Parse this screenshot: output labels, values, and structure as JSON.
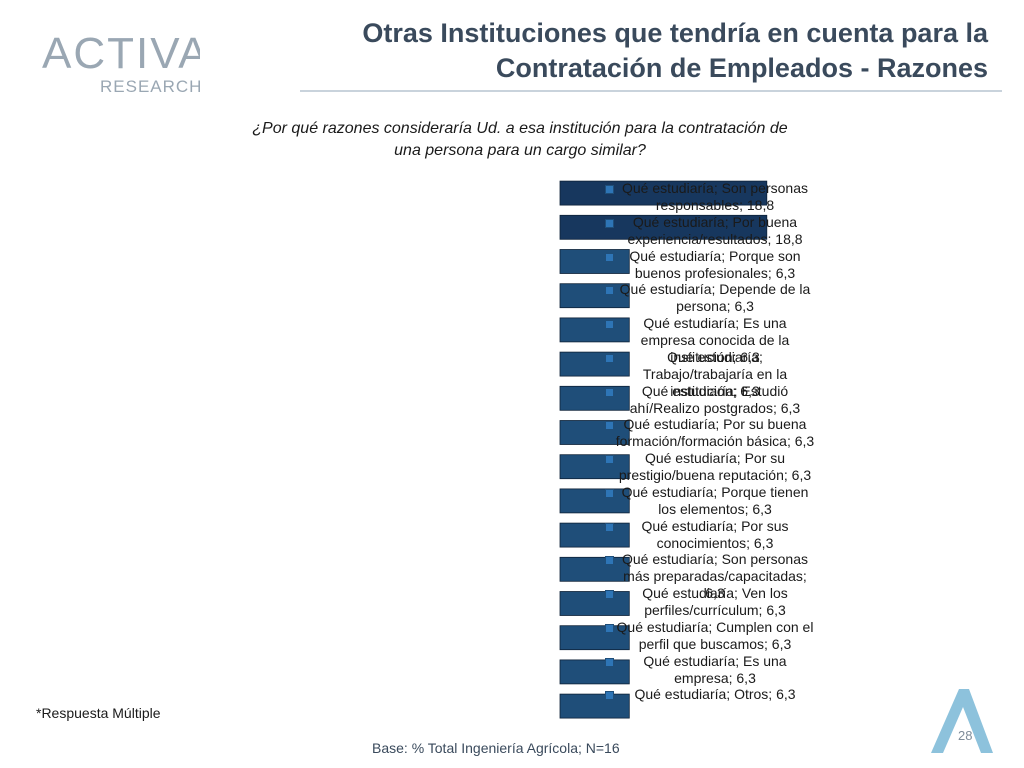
{
  "logo": {
    "brand": "ACTIVA",
    "sub": "RESEARCH"
  },
  "title": {
    "line1": "Otras Instituciones que tendría en cuenta para la",
    "line2": "Contratación de Empleados - Razones"
  },
  "question": {
    "line1": "¿Por qué razones consideraría Ud. a esa institución para la contratación de",
    "line2": "una persona para un cargo similar?"
  },
  "footnote": "*Respuesta Múltiple",
  "base": "Base: % Total Ingeniería Agrícola; N=16",
  "page_number": "28",
  "colors": {
    "bar_dark": "#17375e",
    "bar_light": "#1f4e79",
    "swatch": "#2e75b6",
    "accent": "#2f8fbf"
  },
  "chart_data": {
    "type": "bar",
    "orientation": "horizontal",
    "categories": [
      "Qué estudiaría; Son personas responsables; 18,8",
      "Qué estudiaría; Por buena experiencia/resultados; 18,8",
      "Qué estudiaría; Porque son buenos profesionales; 6,3",
      "Qué estudiaría; Depende de la persona; 6,3",
      "Qué estudiaría; Es una empresa conocida; 6,3",
      "Qué estudiaría; Trabajo/trabajaría en la institución; 6,3",
      "Qué estudiaría; Estudió ahí/Realizo postgrados; 6,3",
      "Qué estudiaría; Por su buena formación/formación básica; 6,3",
      "Qué estudiaría; Por su prestigio/buena reputación; 6,3",
      "Qué estudiaría; Porque tienen los elementos; 6,3",
      "Qué estudiaría; Por sus conocimientos; 6,3",
      "Qué estudiaría; Son personas más preparadas/capacitadas; 6,3",
      "Qué estudiaría; Ven los perfiles/currículum; 6,3",
      "Qué estudiaría; Cumplen con el perfil que buscamos; 6,3",
      "Qué estudiaría; Es una empresa; 6,3",
      "Qué estudiaría; Otros; 6,3"
    ],
    "values": [
      18.8,
      18.8,
      6.3,
      6.3,
      6.3,
      6.3,
      6.3,
      6.3,
      6.3,
      6.3,
      6.3,
      6.3,
      6.3,
      6.3,
      6.3,
      6.3
    ],
    "legend": [
      "Qué estudiaría; Son personas responsables; 18,8",
      "Qué estudiaría; Por buena experiencia/resultados; 18,8",
      "Qué estudiaría; Porque son buenos profesionales; 6,3",
      "Qué estudiaría; Depende de la persona; 6,3",
      "Qué estudiaría; Es una empresa conocida de la institución; 6,3",
      "Qué estudiaría; Trabajo/trabajaría en la institución; 6,3",
      "Qué estudiaría; Estudió ahí/Realizo postgrados; 6,3",
      "Qué estudiaría; Por su buena formación/formación básica; 6,3",
      "Qué estudiaría; Por su prestigio/buena reputación; 6,3",
      "Qué estudiaría; Porque tienen los elementos; 6,3",
      "Qué estudiaría; Por sus conocimientos; 6,3",
      "Qué estudiaría; Son personas más preparadas/capacitadas; 6,3",
      "Qué estudiaría; Ven los perfiles/currículum; 6,3",
      "Qué estudiaría; Cumplen con el perfil que buscamos; 6,3",
      "Qué estudiaría; Es una empresa; 6,3",
      "Qué estudiaría; Otros; 6,3"
    ],
    "xlim": [
      0,
      20
    ]
  }
}
